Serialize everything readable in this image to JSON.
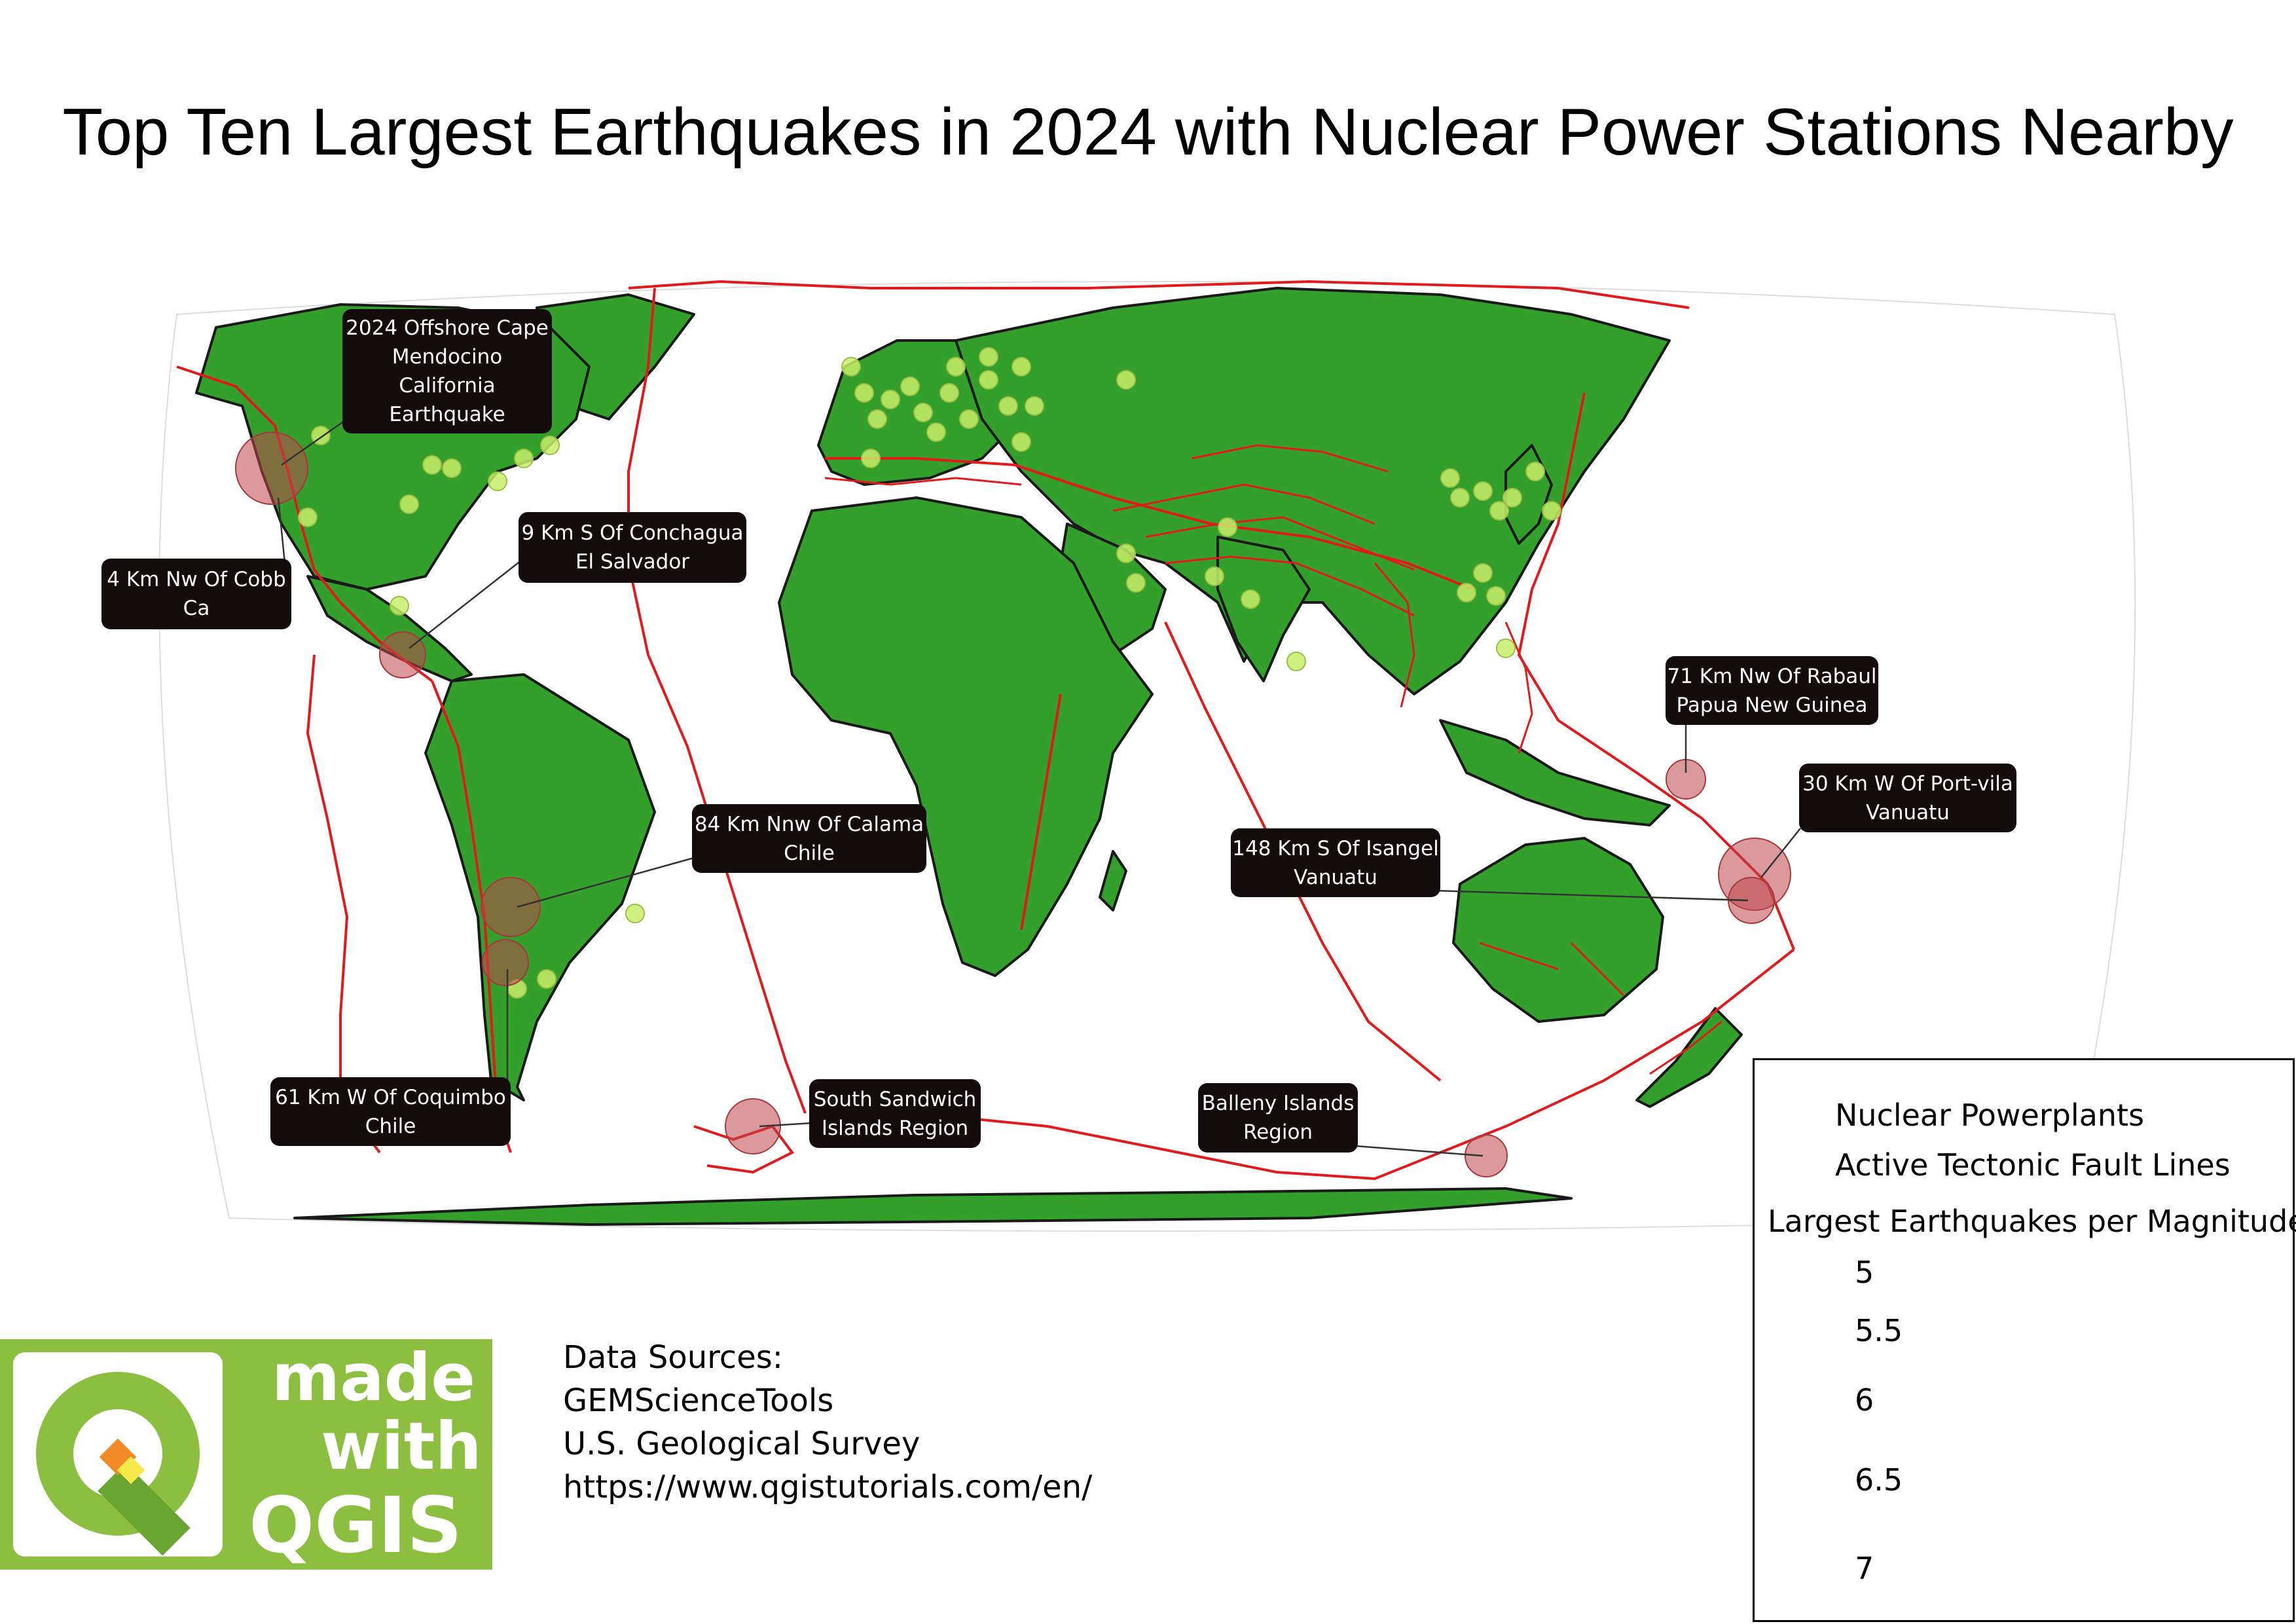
{
  "title": "Top Ten Largest Earthquakes in 2024 with Nuclear Power Stations Nearby",
  "colors": {
    "land": "#33a02c",
    "land_outline": "#1a1a1a",
    "fault_lines": "#e31a1c",
    "nuclear_plants": "#c8ee6b",
    "earthquakes": "#c0454a",
    "label_box": "#140c0c",
    "logo_green": "#8cbf3f"
  },
  "earthquake_labels": [
    {
      "id": "mendocino",
      "lines": [
        "2024 Offshore Cape",
        "Mendocino",
        "California",
        "Earthquake"
      ]
    },
    {
      "id": "cobb",
      "lines": [
        "4 Km Nw Of Cobb",
        "Ca"
      ]
    },
    {
      "id": "conchagua",
      "lines": [
        "9 Km S Of Conchagua",
        "El Salvador"
      ]
    },
    {
      "id": "calama",
      "lines": [
        "84 Km Nnw Of Calama",
        "Chile"
      ]
    },
    {
      "id": "coquimbo",
      "lines": [
        "61 Km W Of Coquimbo",
        "Chile"
      ]
    },
    {
      "id": "sandwich",
      "lines": [
        "South Sandwich",
        "Islands Region"
      ]
    },
    {
      "id": "rabaul",
      "lines": [
        "71 Km Nw Of Rabaul",
        "Papua New Guinea"
      ]
    },
    {
      "id": "portvila",
      "lines": [
        "30 Km W Of Port-vila",
        "Vanuatu"
      ]
    },
    {
      "id": "isangel",
      "lines": [
        "148 Km S Of Isangel",
        "Vanuatu"
      ]
    },
    {
      "id": "balleny",
      "lines": [
        "Balleny Islands",
        "Region"
      ]
    }
  ],
  "legend": {
    "nuclear_label": "Nuclear Powerplants",
    "faults_label": "Active Tectonic Fault Lines",
    "size_title": "Largest Earthquakes per Magnitude",
    "magnitudes": [
      "5",
      "5.5",
      "6",
      "6.5",
      "7"
    ]
  },
  "sources": {
    "heading": "Data Sources:",
    "items": [
      "GEMScienceTools",
      "U.S. Geological Survey",
      "https://www.qgistutorials.com/en/"
    ]
  },
  "logo": {
    "word1": "made",
    "word2": "with",
    "word3": "QGIS"
  }
}
